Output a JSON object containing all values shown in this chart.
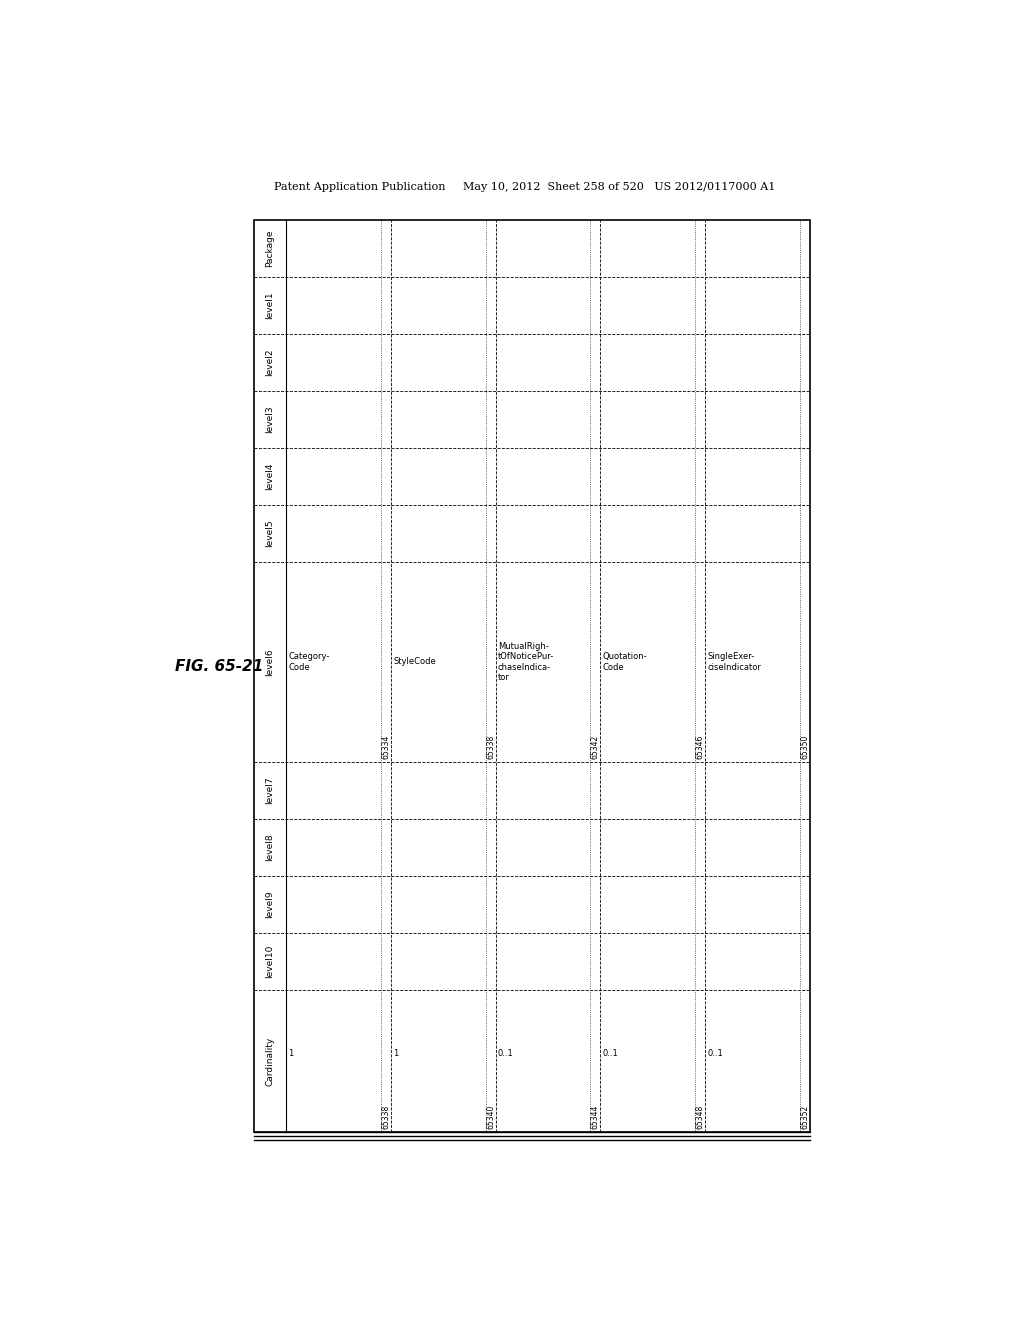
{
  "header_text": "Patent Application Publication     May 10, 2012  Sheet 258 of 520   US 2012/0117000 A1",
  "figure_label": "FIG. 65-21",
  "row_headers": [
    "Package",
    "level1",
    "level2",
    "level3",
    "level4",
    "level5",
    "level6",
    "level7",
    "level8",
    "level9",
    "level10",
    "Cardinality"
  ],
  "row_heights_rel": [
    1.0,
    1.0,
    1.0,
    1.0,
    1.0,
    1.0,
    3.5,
    1.0,
    1.0,
    1.0,
    1.0,
    2.5
  ],
  "n_data_cols": 5,
  "data_cols": [
    {
      "level6_text": "Category-\nCode",
      "level6_id": "65334",
      "cardinality_text": "1",
      "cardinality_id": "65338"
    },
    {
      "level6_text": "StyleCode",
      "level6_id": "65338",
      "cardinality_text": "1",
      "cardinality_id": "65340"
    },
    {
      "level6_text": "MutualRigh-\ntOfNoticePur-\nchaseIndica-\ntor",
      "level6_id": "65342",
      "cardinality_text": "0..1",
      "cardinality_id": "65344"
    },
    {
      "level6_text": "Quotation-\nCode",
      "level6_id": "65346",
      "cardinality_text": "0..1",
      "cardinality_id": "65348"
    },
    {
      "level6_text": "SingleExer-\nciseIndicator",
      "level6_id": "65350",
      "cardinality_text": "0..1",
      "cardinality_id": "65352"
    }
  ],
  "background_color": "#ffffff",
  "line_color": "#000000",
  "text_color": "#000000",
  "header_row_fontsize": 6.5,
  "cell_fontsize": 6.0,
  "id_fontsize": 5.5
}
